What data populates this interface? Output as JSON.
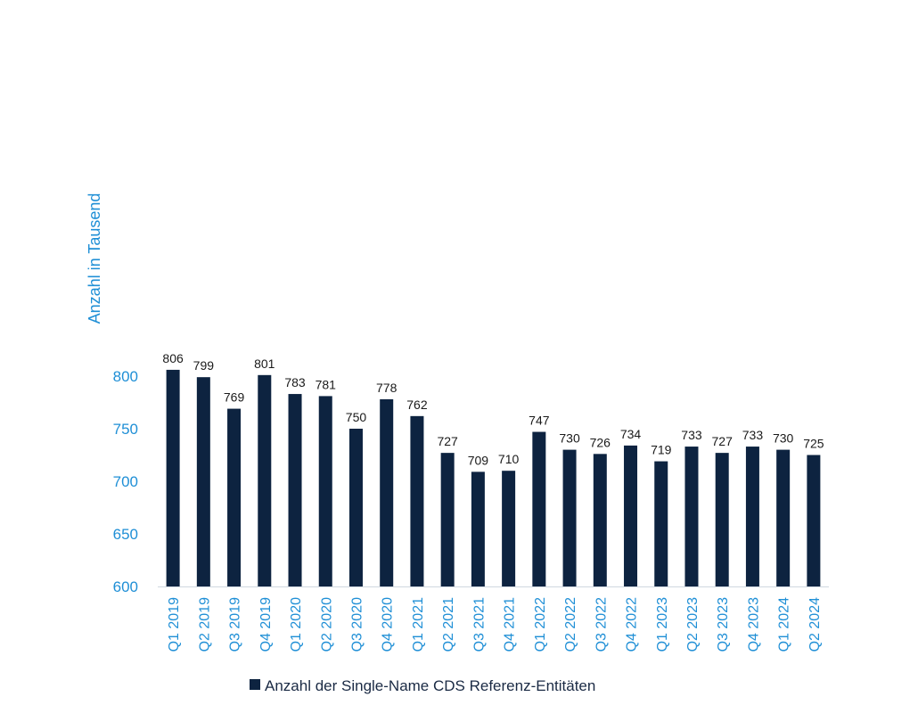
{
  "chart_data": {
    "type": "bar",
    "categories": [
      "Q1 2019",
      "Q2 2019",
      "Q3 2019",
      "Q4 2019",
      "Q1 2020",
      "Q2 2020",
      "Q3 2020",
      "Q4 2020",
      "Q1 2021",
      "Q2 2021",
      "Q3 2021",
      "Q4 2021",
      "Q1 2022",
      "Q2 2022",
      "Q3 2022",
      "Q4 2022",
      "Q1 2023",
      "Q2 2023",
      "Q3 2023",
      "Q4 2023",
      "Q1 2024",
      "Q2 2024"
    ],
    "series": [
      {
        "name": "Anzahl der Single-Name CDS Referenz-Entitäten",
        "values": [
          806,
          799,
          769,
          801,
          783,
          781,
          750,
          778,
          762,
          727,
          709,
          710,
          747,
          730,
          726,
          734,
          719,
          733,
          727,
          733,
          730,
          725
        ]
      }
    ],
    "ylabel": "Anzahl in Tausend",
    "xlabel": "",
    "ylim": [
      600,
      806
    ],
    "yticks": [
      600,
      650,
      700,
      750,
      800
    ],
    "grid": false,
    "legend_position": "bottom",
    "colors": {
      "bar": "#0d2340",
      "axis_text": "#1f8fd6",
      "data_label": "#1a1a1a",
      "axis_line": "#d0d8e0"
    }
  }
}
